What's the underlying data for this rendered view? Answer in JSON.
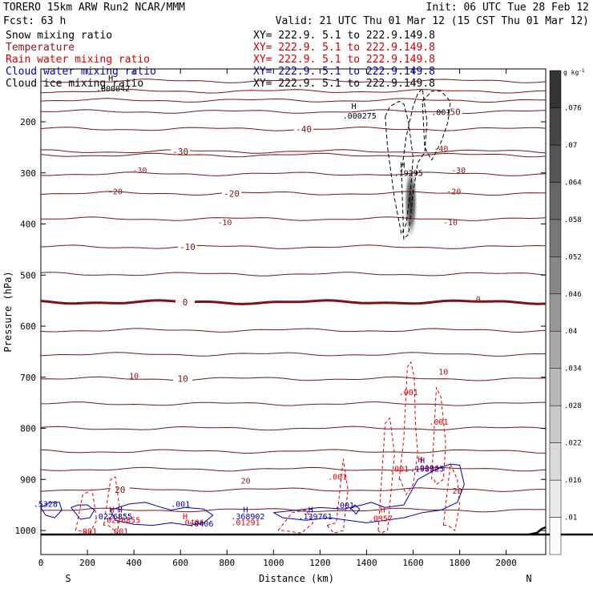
{
  "header": {
    "model": "TORERO  15km ARW   Run2    NCAR/MMM",
    "init": "Init: 06 UTC Tue 28 Feb 12",
    "fcst": "Fcst:   63 h",
    "valid": "Valid: 21 UTC Thu 01 Mar 12 (15 CST Thu 01 Mar 12)"
  },
  "fields": [
    {
      "name": "Snow mixing ratio",
      "color": "#000000",
      "xy": "XY= 222.9.  5.1 to 222.9.149.8",
      "xy_color": "#000000"
    },
    {
      "name": "Temperature",
      "color": "#8b1a1a",
      "xy": "XY= 222.9.  5.1 to 222.9.149.8",
      "xy_color": "#cc0000"
    },
    {
      "name": "Rain water mixing ratio",
      "color": "#dd0000",
      "xy": "XY= 222.9.  5.1 to 222.9.149.8",
      "xy_color": "#dd0000"
    },
    {
      "name": "Cloud water mixing ratio",
      "color": "#0000bb",
      "xy": "XY= 222.9.  5.1 to 222.9.149.8",
      "xy_color": "#0000bb"
    },
    {
      "name": "Cloud ice mixing ratio",
      "color": "#000000",
      "xy": "XY= 222.9.  5.1 to 222.9.149.8",
      "xy_color": "#000000"
    }
  ],
  "chart_data": {
    "type": "contour",
    "xlabel": "Distance (km)",
    "ylabel": "Pressure (hPa)",
    "x_ticks": [
      0,
      200,
      400,
      600,
      800,
      1000,
      1200,
      1400,
      1600,
      1800,
      2000
    ],
    "y_ticks": [
      200,
      300,
      400,
      500,
      600,
      700,
      800,
      900,
      1000
    ],
    "xlim": [
      0,
      2170
    ],
    "ylim": [
      1050,
      100
    ],
    "x_end_labels": {
      "left": "S",
      "right": "N"
    },
    "colorbar": {
      "unit": "g kg",
      "unit_exp": "-1",
      "ticks": [
        ".01",
        ".016",
        ".022",
        ".028",
        ".034",
        ".04",
        ".046",
        ".052",
        ".058",
        ".064",
        ".07",
        ".076"
      ]
    },
    "temperature_contours": [
      {
        "p": 120
      },
      {
        "p": 140
      },
      {
        "p": 158
      },
      {
        "p": 180,
        "label": "-50",
        "label_x": 1770
      },
      {
        "p": 214,
        "label": "-40",
        "label_x": 1130
      },
      {
        "p": 258,
        "label": "-30",
        "label_x": 600
      },
      {
        "p": 265
      },
      {
        "p": 302
      },
      {
        "p": 340,
        "label": "-20",
        "label_x": 820
      },
      {
        "p": 390
      },
      {
        "p": 445,
        "label": "-10",
        "label_x": 630
      },
      {
        "p": 498
      },
      {
        "p": 553,
        "label": "0",
        "label_x": 620,
        "bold": true
      },
      {
        "p": 608
      },
      {
        "p": 655
      },
      {
        "p": 703,
        "label": "10",
        "label_x": 610
      },
      {
        "p": 752
      },
      {
        "p": 800
      },
      {
        "p": 845
      },
      {
        "p": 880
      },
      {
        "p": 920,
        "label": "20",
        "label_x": 340
      },
      {
        "p": 960
      }
    ],
    "annotations": [
      {
        "text": "H",
        "x": 300,
        "p": 120,
        "color": "#000000"
      },
      {
        "text": ".000042",
        "x": 310,
        "p": 140,
        "color": "#000000"
      },
      {
        "text": "H",
        "x": 1345,
        "p": 175,
        "color": "#000000"
      },
      {
        "text": ".000275",
        "x": 1370,
        "p": 194,
        "color": "#000000"
      },
      {
        "text": ".001",
        "x": 1720,
        "p": 187,
        "color": "#000000"
      },
      {
        "text": "H",
        "x": 1555,
        "p": 290,
        "color": "#000000"
      },
      {
        "text": ".19295",
        "x": 1580,
        "p": 306,
        "color": "#000000"
      },
      {
        "text": "-40",
        "x": 1720,
        "p": 258,
        "color": "#8b1a1a"
      },
      {
        "text": "-30",
        "x": 1795,
        "p": 300,
        "color": "#8b1a1a"
      },
      {
        "text": "-20",
        "x": 1775,
        "p": 342,
        "color": "#8b1a1a"
      },
      {
        "text": "-10",
        "x": 1760,
        "p": 402,
        "color": "#8b1a1a"
      },
      {
        "text": "-10",
        "x": 790,
        "p": 402,
        "color": "#8b1a1a"
      },
      {
        "text": "-30",
        "x": 425,
        "p": 300,
        "color": "#8b1a1a"
      },
      {
        "text": "-20",
        "x": 320,
        "p": 342,
        "color": "#8b1a1a"
      },
      {
        "text": "0",
        "x": 1880,
        "p": 553,
        "color": "#8b1a1a"
      },
      {
        "text": "10",
        "x": 400,
        "p": 703,
        "color": "#8b1a1a"
      },
      {
        "text": "10",
        "x": 1730,
        "p": 695,
        "color": "#8b1a1a"
      },
      {
        "text": "20",
        "x": 1790,
        "p": 928,
        "color": "#8b1a1a"
      },
      {
        "text": "20",
        "x": 880,
        "p": 908,
        "color": "#8b1a1a"
      },
      {
        "text": ".001",
        "x": 1580,
        "p": 735,
        "color": "#dd0000"
      },
      {
        "text": ".001",
        "x": 1710,
        "p": 793,
        "color": "#dd0000"
      },
      {
        "text": ".001",
        "x": 1275,
        "p": 900,
        "color": "#dd0000"
      },
      {
        "text": ".001",
        "x": 200,
        "p": 1007,
        "color": "#dd0000"
      },
      {
        "text": ".001",
        "x": 335,
        "p": 1007,
        "color": "#dd0000"
      },
      {
        "text": ".001",
        "x": 1540,
        "p": 885,
        "color": "#dd0000"
      },
      {
        "text": "H",
        "x": 305,
        "p": 965,
        "color": "#dd0000"
      },
      {
        "text": ".0226855",
        "x": 345,
        "p": 985,
        "color": "#dd0000"
      },
      {
        "text": ".0406",
        "x": 650,
        "p": 990,
        "color": "#dd0000"
      },
      {
        "text": "H",
        "x": 620,
        "p": 978,
        "color": "#dd0000"
      },
      {
        "text": ".01291",
        "x": 880,
        "p": 990,
        "color": "#dd0000"
      },
      {
        "text": ".0357",
        "x": 1460,
        "p": 982,
        "color": "#dd0000"
      },
      {
        "text": "H",
        "x": 1470,
        "p": 965,
        "color": "#dd0000"
      },
      {
        "text": ".0194",
        "x": 1660,
        "p": 883,
        "color": "#dd0000"
      },
      {
        "text": "H",
        "x": 1630,
        "p": 867,
        "color": "#dd0000"
      },
      {
        "text": ".5328",
        "x": 20,
        "p": 954,
        "color": "#0000bb"
      },
      {
        "text": "H",
        "x": 340,
        "p": 965,
        "color": "#0000bb"
      },
      {
        "text": ".0226855",
        "x": 310,
        "p": 978,
        "color": "#0000bb"
      },
      {
        "text": ".001",
        "x": 600,
        "p": 954,
        "color": "#0000bb"
      },
      {
        "text": "H",
        "x": 880,
        "p": 965,
        "color": "#0000bb"
      },
      {
        "text": ".368902",
        "x": 890,
        "p": 978,
        "color": "#0000bb"
      },
      {
        "text": "H",
        "x": 1160,
        "p": 965,
        "color": "#0000bb"
      },
      {
        "text": ".139761",
        "x": 1180,
        "p": 978,
        "color": "#0000bb"
      },
      {
        "text": ".001",
        "x": 1305,
        "p": 956,
        "color": "#0000bb"
      },
      {
        "text": "H",
        "x": 1640,
        "p": 868,
        "color": "#0000bb"
      },
      {
        "text": ".198925",
        "x": 1660,
        "p": 885,
        "color": "#0000bb"
      },
      {
        "text": ".0406",
        "x": 690,
        "p": 992,
        "color": "#0000bb"
      }
    ],
    "rain_regions": [
      {
        "x": [
          1230,
          1270,
          1300,
          1320,
          1300,
          1260,
          1230
        ],
        "p": [
          990,
          985,
          860,
          920,
          1000,
          1005,
          990
        ]
      },
      {
        "x": [
          1540,
          1560,
          1575,
          1590,
          1605,
          1610,
          1620,
          1600,
          1570,
          1545
        ],
        "p": [
          900,
          820,
          680,
          670,
          700,
          790,
          850,
          910,
          930,
          900
        ]
      },
      {
        "x": [
          1450,
          1480,
          1500,
          1520,
          1490,
          1460
        ],
        "p": [
          1000,
          790,
          780,
          850,
          1000,
          1005
        ]
      },
      {
        "x": [
          1680,
          1700,
          1720,
          1740,
          1730,
          1700,
          1690
        ],
        "p": [
          900,
          720,
          740,
          830,
          900,
          910,
          900
        ]
      },
      {
        "x": [
          1730,
          1760,
          1790,
          1800,
          1780,
          1750
        ],
        "p": [
          990,
          870,
          900,
          950,
          1000,
          990
        ]
      },
      {
        "x": [
          150,
          180,
          220,
          240,
          210,
          160
        ],
        "p": [
          1000,
          930,
          920,
          980,
          1005,
          1000
        ]
      },
      {
        "x": [
          270,
          300,
          320,
          340,
          330,
          290
        ],
        "p": [
          990,
          900,
          895,
          960,
          1005,
          990
        ]
      },
      {
        "x": [
          1020,
          1080,
          1140,
          1170,
          1120,
          1040
        ],
        "p": [
          1000,
          965,
          960,
          985,
          1005,
          1000
        ]
      }
    ],
    "cloud_water_regions": [
      {
        "x": [
          0,
          40,
          80,
          90,
          60,
          20,
          0
        ],
        "p": [
          955,
          945,
          945,
          960,
          975,
          970,
          955
        ]
      },
      {
        "x": [
          130,
          160,
          200,
          230,
          210,
          170,
          130
        ],
        "p": [
          955,
          950,
          950,
          960,
          975,
          978,
          955
        ]
      },
      {
        "x": [
          300,
          380,
          450,
          520,
          560,
          620,
          700,
          740,
          700,
          640,
          560,
          480,
          400,
          320,
          300
        ],
        "p": [
          960,
          948,
          945,
          955,
          960,
          955,
          958,
          970,
          985,
          990,
          985,
          990,
          988,
          980,
          960
        ]
      },
      {
        "x": [
          1000,
          1100,
          1200,
          1300,
          1380,
          1420,
          1480,
          1560,
          1620,
          1700,
          1760,
          1800,
          1820,
          1790,
          1720,
          1640,
          1560,
          1480,
          1400,
          1320,
          1240,
          1140,
          1040,
          1000
        ],
        "p": [
          965,
          960,
          955,
          958,
          950,
          945,
          955,
          950,
          900,
          880,
          870,
          872,
          910,
          945,
          960,
          965,
          975,
          980,
          985,
          980,
          975,
          980,
          975,
          965
        ]
      },
      {
        "x": [
          1330,
          1350,
          1370,
          1355,
          1335
        ],
        "p": [
          958,
          950,
          958,
          968,
          958
        ]
      }
    ],
    "ice_regions": [
      {
        "x": [
          1480,
          1500,
          1540,
          1560,
          1580,
          1600,
          1590,
          1570,
          1550,
          1520,
          1490,
          1480
        ],
        "p": [
          190,
          170,
          160,
          165,
          200,
          270,
          330,
          400,
          420,
          350,
          250,
          190
        ]
      },
      {
        "x": [
          1550,
          1570,
          1600,
          1620,
          1640,
          1660,
          1650,
          1620,
          1600,
          1580,
          1560,
          1550
        ],
        "p": [
          300,
          230,
          170,
          145,
          135,
          200,
          260,
          280,
          340,
          420,
          430,
          300
        ]
      },
      {
        "x": [
          1640,
          1680,
          1720,
          1760,
          1750,
          1720,
          1680,
          1650,
          1640
        ],
        "p": [
          160,
          140,
          140,
          160,
          200,
          240,
          275,
          250,
          160
        ]
      }
    ],
    "shading": {
      "x": 1590,
      "p_top": 300,
      "p_bottom": 430,
      "peak": 0.19295
    }
  }
}
